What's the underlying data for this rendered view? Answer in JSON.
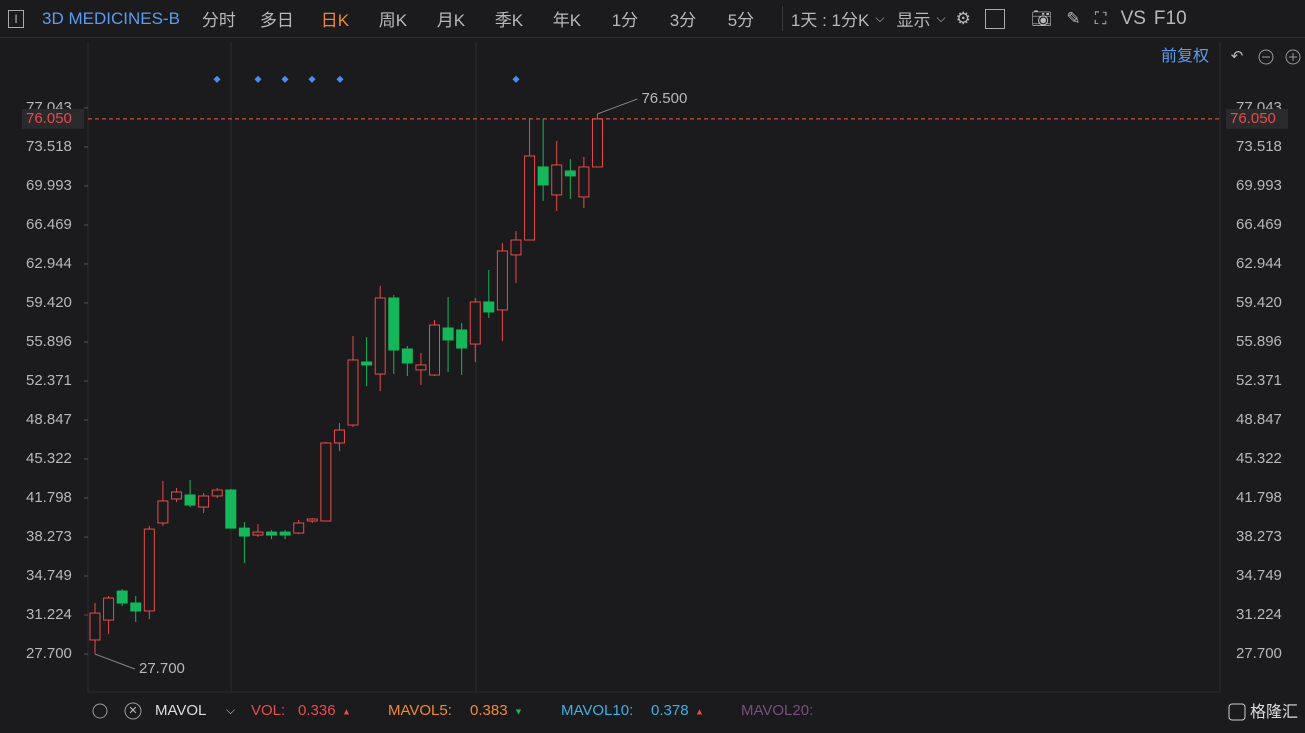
{
  "toolbar": {
    "icon": "I",
    "symbol": "3D MEDICINES-B",
    "periods": [
      "分时",
      "多日",
      "日K",
      "周K",
      "月K",
      "季K",
      "年K",
      "1分",
      "3分",
      "5分"
    ],
    "active_period": "日K",
    "range": "1天 : 1分K",
    "display": "显示",
    "vs": "VS",
    "f10": "F10",
    "adjust": "前复权"
  },
  "chart_data": {
    "type": "candlestick",
    "up_color": "#e84b4b",
    "down_color": "#15b75a",
    "open": [
      28.97,
      30.77,
      33.39,
      32.31,
      31.59,
      39.54,
      41.71,
      42.07,
      40.98,
      41.98,
      42.52,
      39.08,
      38.45,
      38.72,
      38.72,
      38.63,
      39.72,
      39.72,
      46.77,
      48.39,
      54.09,
      53.0,
      59.87,
      55.26,
      53.37,
      52.91,
      57.16,
      56.98,
      55.71,
      59.51,
      58.79,
      63.76,
      65.11,
      71.71,
      69.18,
      71.35,
      69.0,
      71.71
    ],
    "high": [
      32.31,
      32.94,
      33.57,
      32.94,
      39.27,
      43.33,
      42.7,
      43.42,
      42.25,
      42.7,
      42.61,
      39.62,
      39.44,
      38.9,
      38.9,
      39.81,
      39.99,
      46.86,
      48.57,
      56.44,
      56.35,
      60.95,
      60.14,
      55.53,
      54.9,
      57.88,
      59.96,
      57.61,
      59.87,
      62.4,
      64.84,
      65.92,
      76.14,
      76.05,
      74.06,
      72.43,
      72.61,
      76.5
    ],
    "low": [
      27.7,
      29.51,
      32.04,
      30.59,
      30.86,
      39.27,
      41.44,
      40.98,
      40.44,
      41.8,
      39.08,
      35.91,
      38.27,
      38.09,
      38.09,
      38.54,
      39.54,
      39.72,
      46.04,
      48.21,
      51.92,
      51.47,
      53.0,
      52.82,
      52.0,
      52.82,
      53.18,
      52.91,
      54.09,
      58.06,
      55.98,
      61.23,
      65.11,
      68.64,
      67.73,
      68.82,
      68.0,
      71.71
    ],
    "close": [
      31.4,
      32.76,
      32.31,
      31.59,
      38.99,
      41.53,
      42.34,
      41.16,
      41.98,
      42.52,
      39.08,
      38.36,
      38.72,
      38.45,
      38.45,
      39.54,
      39.9,
      46.77,
      47.94,
      54.27,
      53.82,
      59.87,
      55.17,
      54.0,
      53.82,
      57.43,
      56.08,
      55.35,
      59.51,
      58.61,
      64.12,
      65.11,
      72.7,
      70.08,
      71.89,
      70.9,
      71.71,
      76.05
    ],
    "ylim": [
      24.45,
      80.47
    ],
    "yticks": [
      {
        "value": 27.7,
        "label": "27.700"
      },
      {
        "value": 31.224,
        "label": "31.224"
      },
      {
        "value": 34.749,
        "label": "34.749"
      },
      {
        "value": 38.273,
        "label": "38.273"
      },
      {
        "value": 41.798,
        "label": "41.798"
      },
      {
        "value": 45.322,
        "label": "45.322"
      },
      {
        "value": 48.847,
        "label": "48.847"
      },
      {
        "value": 52.371,
        "label": "52.371"
      },
      {
        "value": 55.896,
        "label": "55.896"
      },
      {
        "value": 59.42,
        "label": "59.420"
      },
      {
        "value": 62.944,
        "label": "62.944"
      },
      {
        "value": 66.469,
        "label": "66.469"
      },
      {
        "value": 69.993,
        "label": "69.993"
      },
      {
        "value": 73.518,
        "label": "73.518"
      },
      {
        "value": 77.043,
        "label": "77.043"
      }
    ],
    "last_price": {
      "value": 76.05,
      "label": "76.050"
    },
    "high_label": {
      "value": 76.5,
      "label": "76.500"
    },
    "low_label": {
      "value": 27.7,
      "label": "27.700"
    }
  },
  "volume_bar": {
    "name": "MAVOL",
    "vol_label": "VOL:",
    "vol": "0.336",
    "mavol5_label": "MAVOL5:",
    "mavol5": "0.383",
    "mavol10_label": "MAVOL10:",
    "mavol10": "0.378",
    "mavol20_label": "MAVOL20:",
    "watermark": "格隆汇"
  }
}
